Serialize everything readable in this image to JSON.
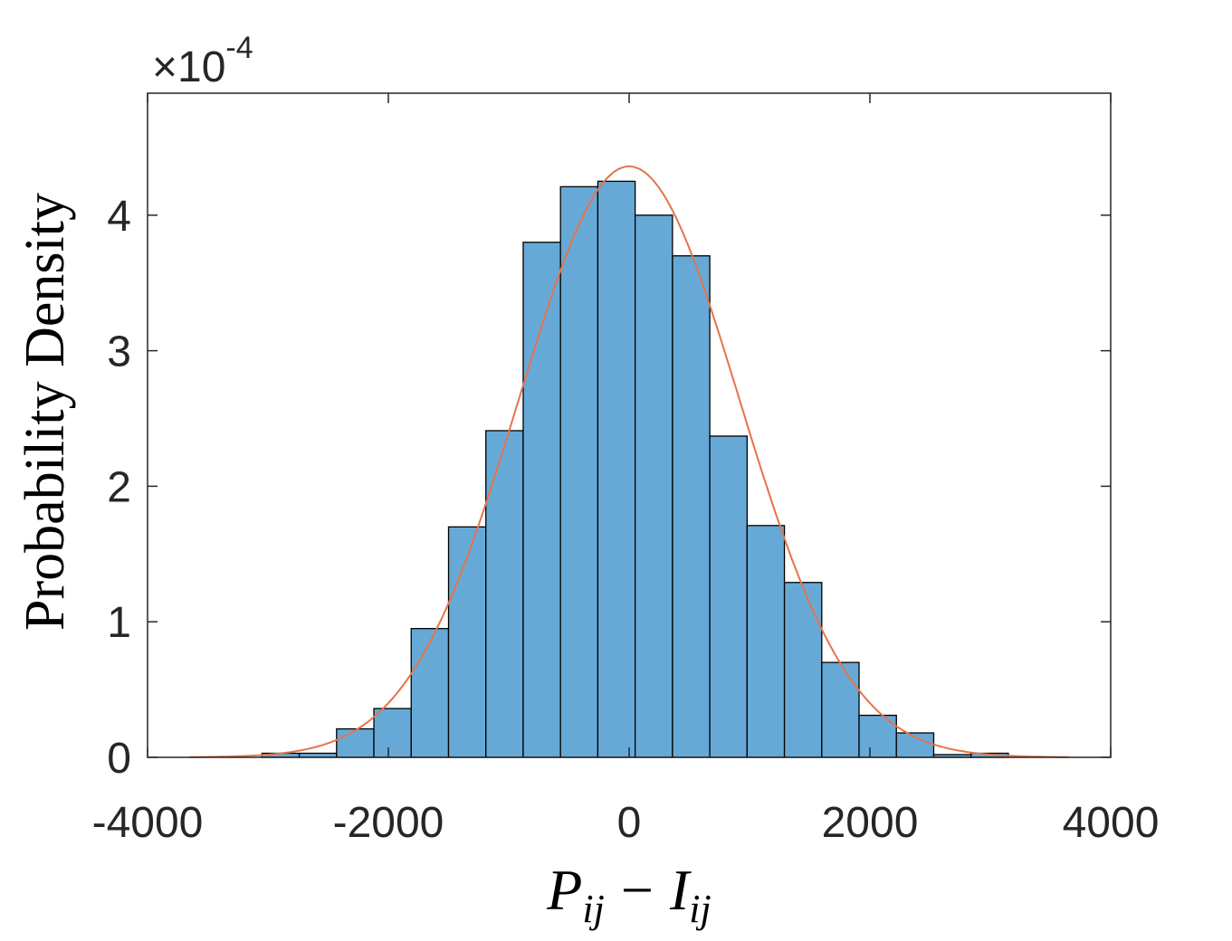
{
  "chart_data": {
    "type": "bar",
    "subtype": "histogram-with-normal-fit",
    "title": "",
    "xlabel": "P_ij − I_ij",
    "xlabel_parts": {
      "var1": "P",
      "sub1": "ij",
      "minus": "−",
      "var2": "I",
      "sub2": "ij"
    },
    "ylabel": "Probability Density",
    "y_multiplier": {
      "times": "×",
      "base": "10",
      "exponent": "-4"
    },
    "xlim": [
      -4000,
      4000
    ],
    "ylim": [
      0,
      4.9
    ],
    "y_scale_factor": 0.0001,
    "xticks": [
      -4000,
      -2000,
      0,
      2000,
      4000
    ],
    "xtick_labels": [
      "-4000",
      "-2000",
      "0",
      "2000",
      "4000"
    ],
    "yticks": [
      0,
      1,
      2,
      3,
      4
    ],
    "ytick_labels": [
      "0",
      "1",
      "2",
      "3",
      "4"
    ],
    "grid": false,
    "bin_edges": [
      -3050,
      -2740,
      -2430,
      -2120,
      -1810,
      -1500,
      -1190,
      -880,
      -570,
      -260,
      50,
      360,
      670,
      980,
      1290,
      1600,
      1910,
      2220,
      2530,
      2840,
      3150,
      3460
    ],
    "series": [
      {
        "kind": "histogram",
        "values": [
          0.03,
          0.03,
          0.21,
          0.36,
          0.95,
          1.7,
          2.41,
          3.8,
          4.21,
          4.25,
          4.0,
          3.7,
          2.37,
          1.71,
          1.29,
          0.7,
          0.31,
          0.18,
          0.02,
          0.03,
          0.0
        ],
        "color": "#67a9d6",
        "edge_color": "#000000"
      },
      {
        "kind": "normal-fit-curve",
        "mean": 0,
        "std": 915,
        "peak": 4.36,
        "x_range": [
          -3650,
          3650
        ],
        "color": "#e4744a"
      }
    ],
    "colors": {
      "bar": "#67a9d6",
      "bar_edge": "#000000",
      "fit": "#e4744a",
      "axis": "#262626"
    }
  }
}
